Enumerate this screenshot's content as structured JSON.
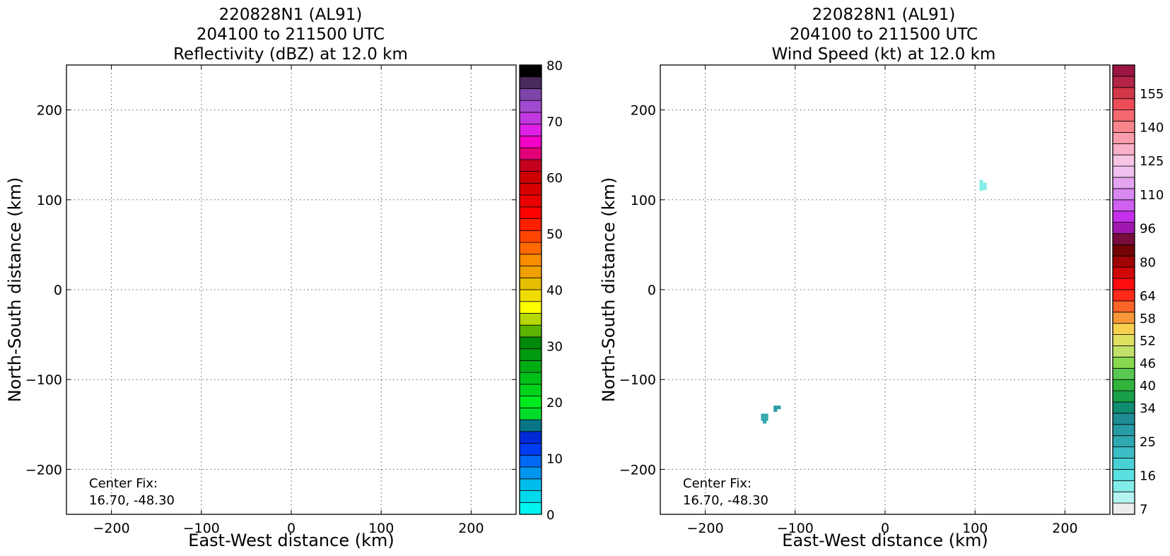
{
  "chart_data": [
    {
      "type": "heatmap",
      "title_lines": [
        "220828N1 (AL91)",
        "204100 to 211500 UTC",
        "Reflectivity (dBZ) at 12.0 km"
      ],
      "xlabel": "East-West distance (km)",
      "ylabel": "North-South distance (km)",
      "xlim": [
        -250,
        250
      ],
      "ylim": [
        -250,
        250
      ],
      "xticks": [
        -200,
        -100,
        0,
        100,
        200
      ],
      "yticks": [
        -200,
        -100,
        0,
        100,
        200
      ],
      "xtick_labels": [
        "−200",
        "−100",
        "0",
        "100",
        "200"
      ],
      "ytick_labels": [
        "−200",
        "−100",
        "0",
        "100",
        "200"
      ],
      "grid": true,
      "annotation_lines": [
        "Center Fix:",
        "16.70, -48.30"
      ],
      "colorbar": {
        "min": 0,
        "max": 80,
        "tick_values": [
          0,
          10,
          20,
          30,
          40,
          50,
          60,
          70,
          80
        ],
        "tick_labels": [
          "0",
          "10",
          "20",
          "30",
          "40",
          "50",
          "60",
          "70",
          "80"
        ],
        "colors": [
          "#00f5f0",
          "#00d8ec",
          "#00bced",
          "#0095ee",
          "#0068f2",
          "#003cf2",
          "#002ad8",
          "#067687",
          "#00dc2a",
          "#00e81e",
          "#00d41a",
          "#00c018",
          "#00ac12",
          "#009a10",
          "#008a0a",
          "#5ab400",
          "#b4d800",
          "#ffff00",
          "#f0dc00",
          "#e6be00",
          "#f0a000",
          "#fa8c00",
          "#ff6a00",
          "#ff4600",
          "#ff2000",
          "#ff0000",
          "#ea0000",
          "#d60000",
          "#cc0000",
          "#c4001c",
          "#e20078",
          "#f500c6",
          "#e020e6",
          "#c038de",
          "#a04ad0",
          "#7e44aa",
          "#4a2a5c",
          "#000000"
        ],
        "outlined": true
      },
      "cells": []
    },
    {
      "type": "heatmap",
      "title_lines": [
        "220828N1 (AL91)",
        "204100 to 211500 UTC",
        "Wind Speed (kt) at 12.0 km"
      ],
      "xlabel": "East-West distance (km)",
      "ylabel": "North-South distance (km)",
      "xlim": [
        -250,
        250
      ],
      "ylim": [
        -250,
        250
      ],
      "xticks": [
        -200,
        -100,
        0,
        100,
        200
      ],
      "yticks": [
        -200,
        -100,
        0,
        100,
        200
      ],
      "xtick_labels": [
        "−200",
        "−100",
        "0",
        "100",
        "200"
      ],
      "ytick_labels": [
        "−200",
        "−100",
        "0",
        "100",
        "200"
      ],
      "grid": true,
      "annotation_lines": [
        "Center Fix:",
        "16.70, -48.30"
      ],
      "colorbar": {
        "min": 4,
        "max": 164,
        "tick_values": [
          7,
          16,
          25,
          34,
          40,
          46,
          52,
          58,
          64,
          80,
          96,
          110,
          125,
          140,
          155
        ],
        "tick_labels": [
          "7",
          "16",
          "25",
          "34",
          "40",
          "46",
          "52",
          "58",
          "64",
          "80",
          "96",
          "110",
          "125",
          "140",
          "155"
        ],
        "tick_index": [
          0,
          3,
          6,
          9,
          11,
          13,
          15,
          17,
          19,
          22,
          25,
          28,
          31,
          34,
          37
        ],
        "colors": [
          "#ececec",
          "#b4f4f0",
          "#82ece8",
          "#5ae0e0",
          "#48d0d4",
          "#3cbcc4",
          "#30a8b0",
          "#289ca4",
          "#208c94",
          "#108c70",
          "#18a048",
          "#30b43c",
          "#58c850",
          "#88d850",
          "#c0e068",
          "#e0e060",
          "#f8d050",
          "#f89838",
          "#fa6428",
          "#ff2a18",
          "#ff0c0c",
          "#d00808",
          "#a00404",
          "#740404",
          "#780c3c",
          "#a018b0",
          "#c430ec",
          "#d060f0",
          "#d888f0",
          "#e4a4f0",
          "#f0c0ee",
          "#f8c4e4",
          "#fab0c8",
          "#fa9cac",
          "#f8848c",
          "#f46870",
          "#ec4c58",
          "#d23648",
          "#b42446",
          "#9c1444"
        ],
        "outlined": true
      },
      "cells": [
        {
          "x": -136,
          "y": -140,
          "v": 30
        },
        {
          "x": -132,
          "y": -140,
          "v": 31
        },
        {
          "x": -136,
          "y": -144,
          "v": 31
        },
        {
          "x": -132,
          "y": -144,
          "v": 30
        },
        {
          "x": -134,
          "y": -147,
          "v": 31
        },
        {
          "x": -122,
          "y": -131,
          "v": 33
        },
        {
          "x": -118,
          "y": -131,
          "v": 32
        },
        {
          "x": -122,
          "y": -134,
          "v": 33
        },
        {
          "x": 107,
          "y": 120,
          "v": 13
        },
        {
          "x": 107,
          "y": 116,
          "v": 14
        },
        {
          "x": 111,
          "y": 117,
          "v": 13
        },
        {
          "x": 111,
          "y": 113,
          "v": 12
        },
        {
          "x": 107,
          "y": 112,
          "v": 13
        }
      ]
    }
  ]
}
